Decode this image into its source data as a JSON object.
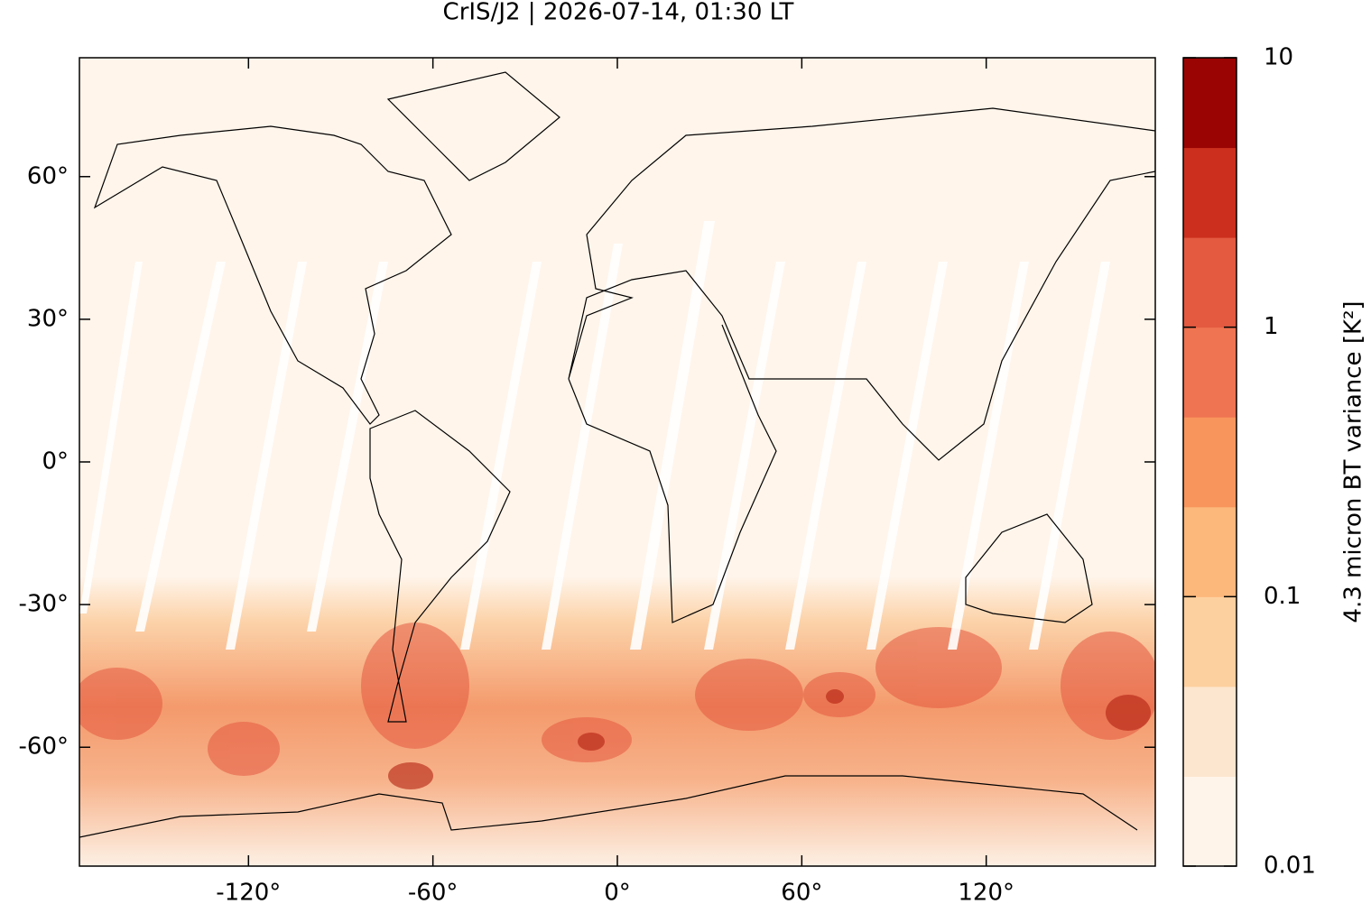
{
  "chart_data": {
    "type": "map",
    "title": "CrIS/J2 | 2026-07-14, 01:30 LT",
    "xlim": [
      -175,
      175
    ],
    "ylim": [
      -85,
      85
    ],
    "xticks": [
      {
        "value": -120,
        "label": "-120°"
      },
      {
        "value": -60,
        "label": "-60°"
      },
      {
        "value": 0,
        "label": "0°"
      },
      {
        "value": 60,
        "label": "60°"
      },
      {
        "value": 120,
        "label": "120°"
      }
    ],
    "yticks": [
      {
        "value": -60,
        "label": "-60°"
      },
      {
        "value": -30,
        "label": "-30°"
      },
      {
        "value": 0,
        "label": "0°"
      },
      {
        "value": 30,
        "label": "30°"
      },
      {
        "value": 60,
        "label": "60°"
      }
    ],
    "colorbar": {
      "label": "4.3 micron BT variance [K²]",
      "log": true,
      "lim": [
        0.01,
        10
      ],
      "ticks": [
        0.01,
        0.1,
        1,
        10
      ],
      "colors": [
        "#fff4e9",
        "#fde6cf",
        "#fdd09f",
        "#fcb77b",
        "#f8955d",
        "#ef7452",
        "#e35a41",
        "#cc2f1d",
        "#9a0504"
      ]
    }
  }
}
